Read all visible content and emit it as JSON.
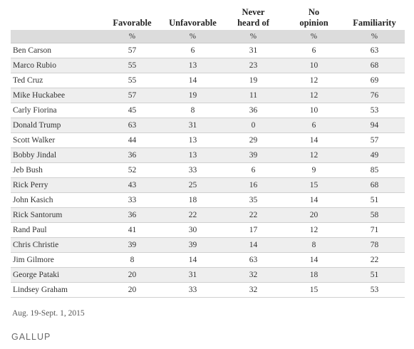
{
  "table": {
    "headers": [
      "",
      "Favorable",
      "Unfavorable",
      "Never\nheard of",
      "No\nopinion",
      "Familiarity"
    ],
    "units": [
      "",
      "%",
      "%",
      "%",
      "%",
      "%"
    ],
    "rows": [
      {
        "name": "Ben Carson",
        "favorable": "57",
        "unfavorable": "6",
        "never_heard": "31",
        "no_opinion": "6",
        "familiarity": "63"
      },
      {
        "name": "Marco Rubio",
        "favorable": "55",
        "unfavorable": "13",
        "never_heard": "23",
        "no_opinion": "10",
        "familiarity": "68"
      },
      {
        "name": "Ted Cruz",
        "favorable": "55",
        "unfavorable": "14",
        "never_heard": "19",
        "no_opinion": "12",
        "familiarity": "69"
      },
      {
        "name": "Mike Huckabee",
        "favorable": "57",
        "unfavorable": "19",
        "never_heard": "11",
        "no_opinion": "12",
        "familiarity": "76"
      },
      {
        "name": "Carly Fiorina",
        "favorable": "45",
        "unfavorable": "8",
        "never_heard": "36",
        "no_opinion": "10",
        "familiarity": "53"
      },
      {
        "name": "Donald Trump",
        "favorable": "63",
        "unfavorable": "31",
        "never_heard": "0",
        "no_opinion": "6",
        "familiarity": "94"
      },
      {
        "name": "Scott Walker",
        "favorable": "44",
        "unfavorable": "13",
        "never_heard": "29",
        "no_opinion": "14",
        "familiarity": "57"
      },
      {
        "name": "Bobby Jindal",
        "favorable": "36",
        "unfavorable": "13",
        "never_heard": "39",
        "no_opinion": "12",
        "familiarity": "49"
      },
      {
        "name": "Jeb Bush",
        "favorable": "52",
        "unfavorable": "33",
        "never_heard": "6",
        "no_opinion": "9",
        "familiarity": "85"
      },
      {
        "name": "Rick Perry",
        "favorable": "43",
        "unfavorable": "25",
        "never_heard": "16",
        "no_opinion": "15",
        "familiarity": "68"
      },
      {
        "name": "John Kasich",
        "favorable": "33",
        "unfavorable": "18",
        "never_heard": "35",
        "no_opinion": "14",
        "familiarity": "51"
      },
      {
        "name": "Rick Santorum",
        "favorable": "36",
        "unfavorable": "22",
        "never_heard": "22",
        "no_opinion": "20",
        "familiarity": "58"
      },
      {
        "name": "Rand Paul",
        "favorable": "41",
        "unfavorable": "30",
        "never_heard": "17",
        "no_opinion": "12",
        "familiarity": "71"
      },
      {
        "name": "Chris Christie",
        "favorable": "39",
        "unfavorable": "39",
        "never_heard": "14",
        "no_opinion": "8",
        "familiarity": "78"
      },
      {
        "name": "Jim Gilmore",
        "favorable": "8",
        "unfavorable": "14",
        "never_heard": "63",
        "no_opinion": "14",
        "familiarity": "22"
      },
      {
        "name": "George Pataki",
        "favorable": "20",
        "unfavorable": "31",
        "never_heard": "32",
        "no_opinion": "18",
        "familiarity": "51"
      },
      {
        "name": "Lindsey Graham",
        "favorable": "20",
        "unfavorable": "33",
        "never_heard": "32",
        "no_opinion": "15",
        "familiarity": "53"
      }
    ]
  },
  "footer": {
    "date_range": "Aug. 19-Sept. 1, 2015",
    "source_logo": "GALLUP"
  }
}
